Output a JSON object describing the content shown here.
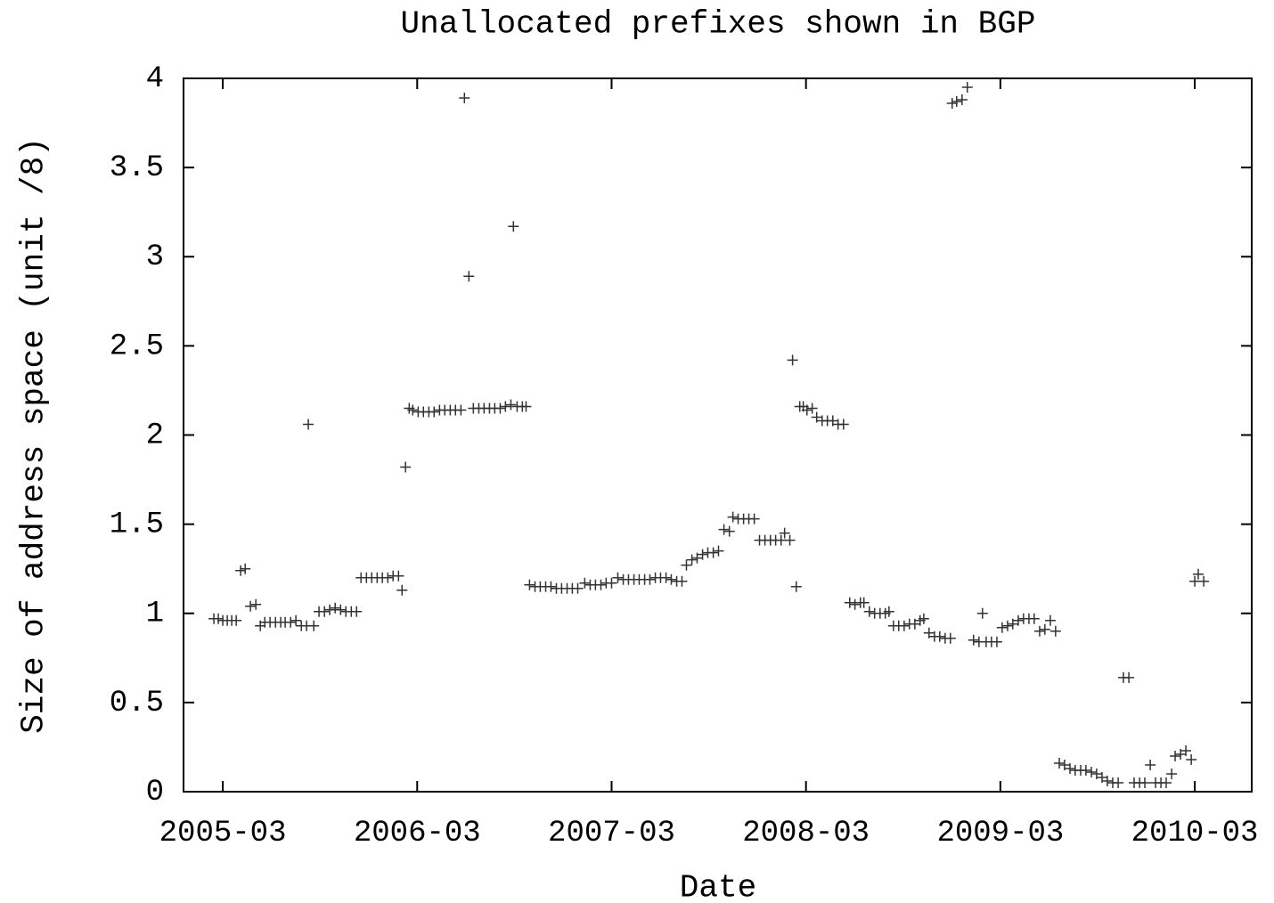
{
  "chart_data": {
    "type": "scatter",
    "title": "Unallocated prefixes shown in BGP",
    "x_label": "Date",
    "y_label": "Size of address space (unit /8)",
    "color": "#333333",
    "marker": "+",
    "xlim": [
      2004.965,
      2010.46
    ],
    "ylim": [
      0,
      4
    ],
    "xticks": [
      {
        "value": 2005.167,
        "label": "2005-03"
      },
      {
        "value": 2006.167,
        "label": "2006-03"
      },
      {
        "value": 2007.167,
        "label": "2007-03"
      },
      {
        "value": 2008.167,
        "label": "2008-03"
      },
      {
        "value": 2009.167,
        "label": "2009-03"
      },
      {
        "value": 2010.167,
        "label": "2010-03"
      }
    ],
    "yticks": [
      0,
      0.5,
      1,
      1.5,
      2,
      2.5,
      3,
      3.5,
      4
    ],
    "grid": false,
    "x": [
      2005.121,
      2005.144,
      2005.167,
      2005.19,
      2005.213,
      2005.236,
      2005.259,
      2005.282,
      2005.309,
      2005.337,
      2005.36,
      2005.383,
      2005.41,
      2005.438,
      2005.465,
      2005.488,
      2005.516,
      2005.543,
      2005.571,
      2005.598,
      2005.607,
      2005.635,
      2005.662,
      2005.69,
      2005.717,
      2005.745,
      2005.773,
      2005.8,
      2005.828,
      2005.855,
      2005.878,
      2005.906,
      2005.933,
      2005.961,
      2005.988,
      2006.016,
      2006.043,
      2006.071,
      2006.089,
      2006.107,
      2006.126,
      2006.144,
      2006.172,
      2006.199,
      2006.227,
      2006.254,
      2006.282,
      2006.309,
      2006.337,
      2006.364,
      2006.392,
      2006.41,
      2006.433,
      2006.456,
      2006.484,
      2006.511,
      2006.539,
      2006.566,
      2006.594,
      2006.621,
      2006.649,
      2006.662,
      2006.681,
      2006.708,
      2006.727,
      2006.745,
      2006.773,
      2006.8,
      2006.828,
      2006.855,
      2006.883,
      2006.91,
      2006.938,
      2006.965,
      2006.993,
      2007.029,
      2007.057,
      2007.084,
      2007.112,
      2007.139,
      2007.167,
      2007.199,
      2007.227,
      2007.254,
      2007.282,
      2007.309,
      2007.337,
      2007.364,
      2007.392,
      2007.419,
      2007.447,
      2007.474,
      2007.502,
      2007.529,
      2007.552,
      2007.58,
      2007.607,
      2007.635,
      2007.662,
      2007.69,
      2007.717,
      2007.745,
      2007.773,
      2007.791,
      2007.818,
      2007.846,
      2007.873,
      2007.901,
      2007.928,
      2007.956,
      2007.984,
      2008.011,
      2008.039,
      2008.057,
      2008.084,
      2008.098,
      2008.117,
      2008.135,
      2008.153,
      2008.172,
      2008.199,
      2008.222,
      2008.25,
      2008.277,
      2008.305,
      2008.332,
      2008.36,
      2008.392,
      2008.419,
      2008.447,
      2008.465,
      2008.493,
      2008.52,
      2008.548,
      2008.575,
      2008.594,
      2008.617,
      2008.644,
      2008.672,
      2008.699,
      2008.727,
      2008.754,
      2008.773,
      2008.8,
      2008.828,
      2008.855,
      2008.883,
      2008.91,
      2008.919,
      2008.942,
      2008.97,
      2008.997,
      2009.029,
      2009.057,
      2009.075,
      2009.094,
      2009.121,
      2009.149,
      2009.176,
      2009.204,
      2009.231,
      2009.259,
      2009.286,
      2009.314,
      2009.341,
      2009.369,
      2009.396,
      2009.424,
      2009.451,
      2009.47,
      2009.497,
      2009.525,
      2009.552,
      2009.58,
      2009.607,
      2009.635,
      2009.662,
      2009.69,
      2009.717,
      2009.745,
      2009.773,
      2009.8,
      2009.828,
      2009.855,
      2009.883,
      2009.91,
      2009.938,
      2009.965,
      2009.993,
      2010.02,
      2010.048,
      2010.066,
      2010.094,
      2010.121,
      2010.149,
      2010.167,
      2010.185,
      2010.213
    ],
    "values": [
      0.97,
      0.97,
      0.96,
      0.96,
      0.96,
      0.96,
      1.24,
      1.25,
      1.04,
      1.05,
      0.93,
      0.95,
      0.95,
      0.95,
      0.95,
      0.95,
      0.95,
      0.96,
      0.93,
      0.93,
      2.06,
      0.93,
      1.01,
      1.01,
      1.02,
      1.03,
      1.02,
      1.01,
      1.01,
      1.01,
      1.2,
      1.2,
      1.2,
      1.2,
      1.2,
      1.2,
      1.21,
      1.21,
      1.13,
      1.82,
      2.15,
      2.14,
      2.13,
      2.13,
      2.13,
      2.13,
      2.14,
      2.14,
      2.14,
      2.14,
      2.14,
      3.89,
      2.89,
      2.15,
      2.15,
      2.15,
      2.15,
      2.15,
      2.15,
      2.16,
      2.17,
      3.17,
      2.16,
      2.16,
      2.16,
      1.16,
      1.15,
      1.15,
      1.15,
      1.15,
      1.14,
      1.14,
      1.14,
      1.14,
      1.14,
      1.17,
      1.16,
      1.16,
      1.16,
      1.17,
      1.17,
      1.2,
      1.19,
      1.19,
      1.19,
      1.19,
      1.19,
      1.19,
      1.2,
      1.2,
      1.2,
      1.19,
      1.18,
      1.18,
      1.27,
      1.3,
      1.31,
      1.33,
      1.34,
      1.34,
      1.35,
      1.47,
      1.46,
      1.54,
      1.53,
      1.53,
      1.53,
      1.53,
      1.41,
      1.41,
      1.41,
      1.41,
      1.41,
      1.45,
      1.41,
      2.42,
      1.15,
      2.16,
      2.16,
      2.14,
      2.15,
      2.1,
      2.08,
      2.08,
      2.08,
      2.06,
      2.06,
      1.06,
      1.05,
      1.06,
      1.06,
      1.01,
      1.0,
      1.0,
      1.0,
      1.01,
      0.93,
      0.93,
      0.93,
      0.94,
      0.94,
      0.96,
      0.97,
      0.89,
      0.87,
      0.87,
      0.86,
      0.86,
      3.86,
      3.87,
      3.88,
      3.95,
      0.85,
      0.84,
      1.0,
      0.84,
      0.84,
      0.84,
      0.92,
      0.93,
      0.94,
      0.96,
      0.97,
      0.97,
      0.97,
      0.9,
      0.91,
      0.96,
      0.9,
      0.16,
      0.15,
      0.13,
      0.12,
      0.12,
      0.12,
      0.11,
      0.1,
      0.08,
      0.06,
      0.05,
      0.05,
      0.64,
      0.64,
      0.05,
      0.05,
      0.05,
      0.15,
      0.05,
      0.05,
      0.05,
      0.1,
      0.2,
      0.21,
      0.23,
      0.18,
      1.18,
      1.22,
      1.18
    ]
  }
}
